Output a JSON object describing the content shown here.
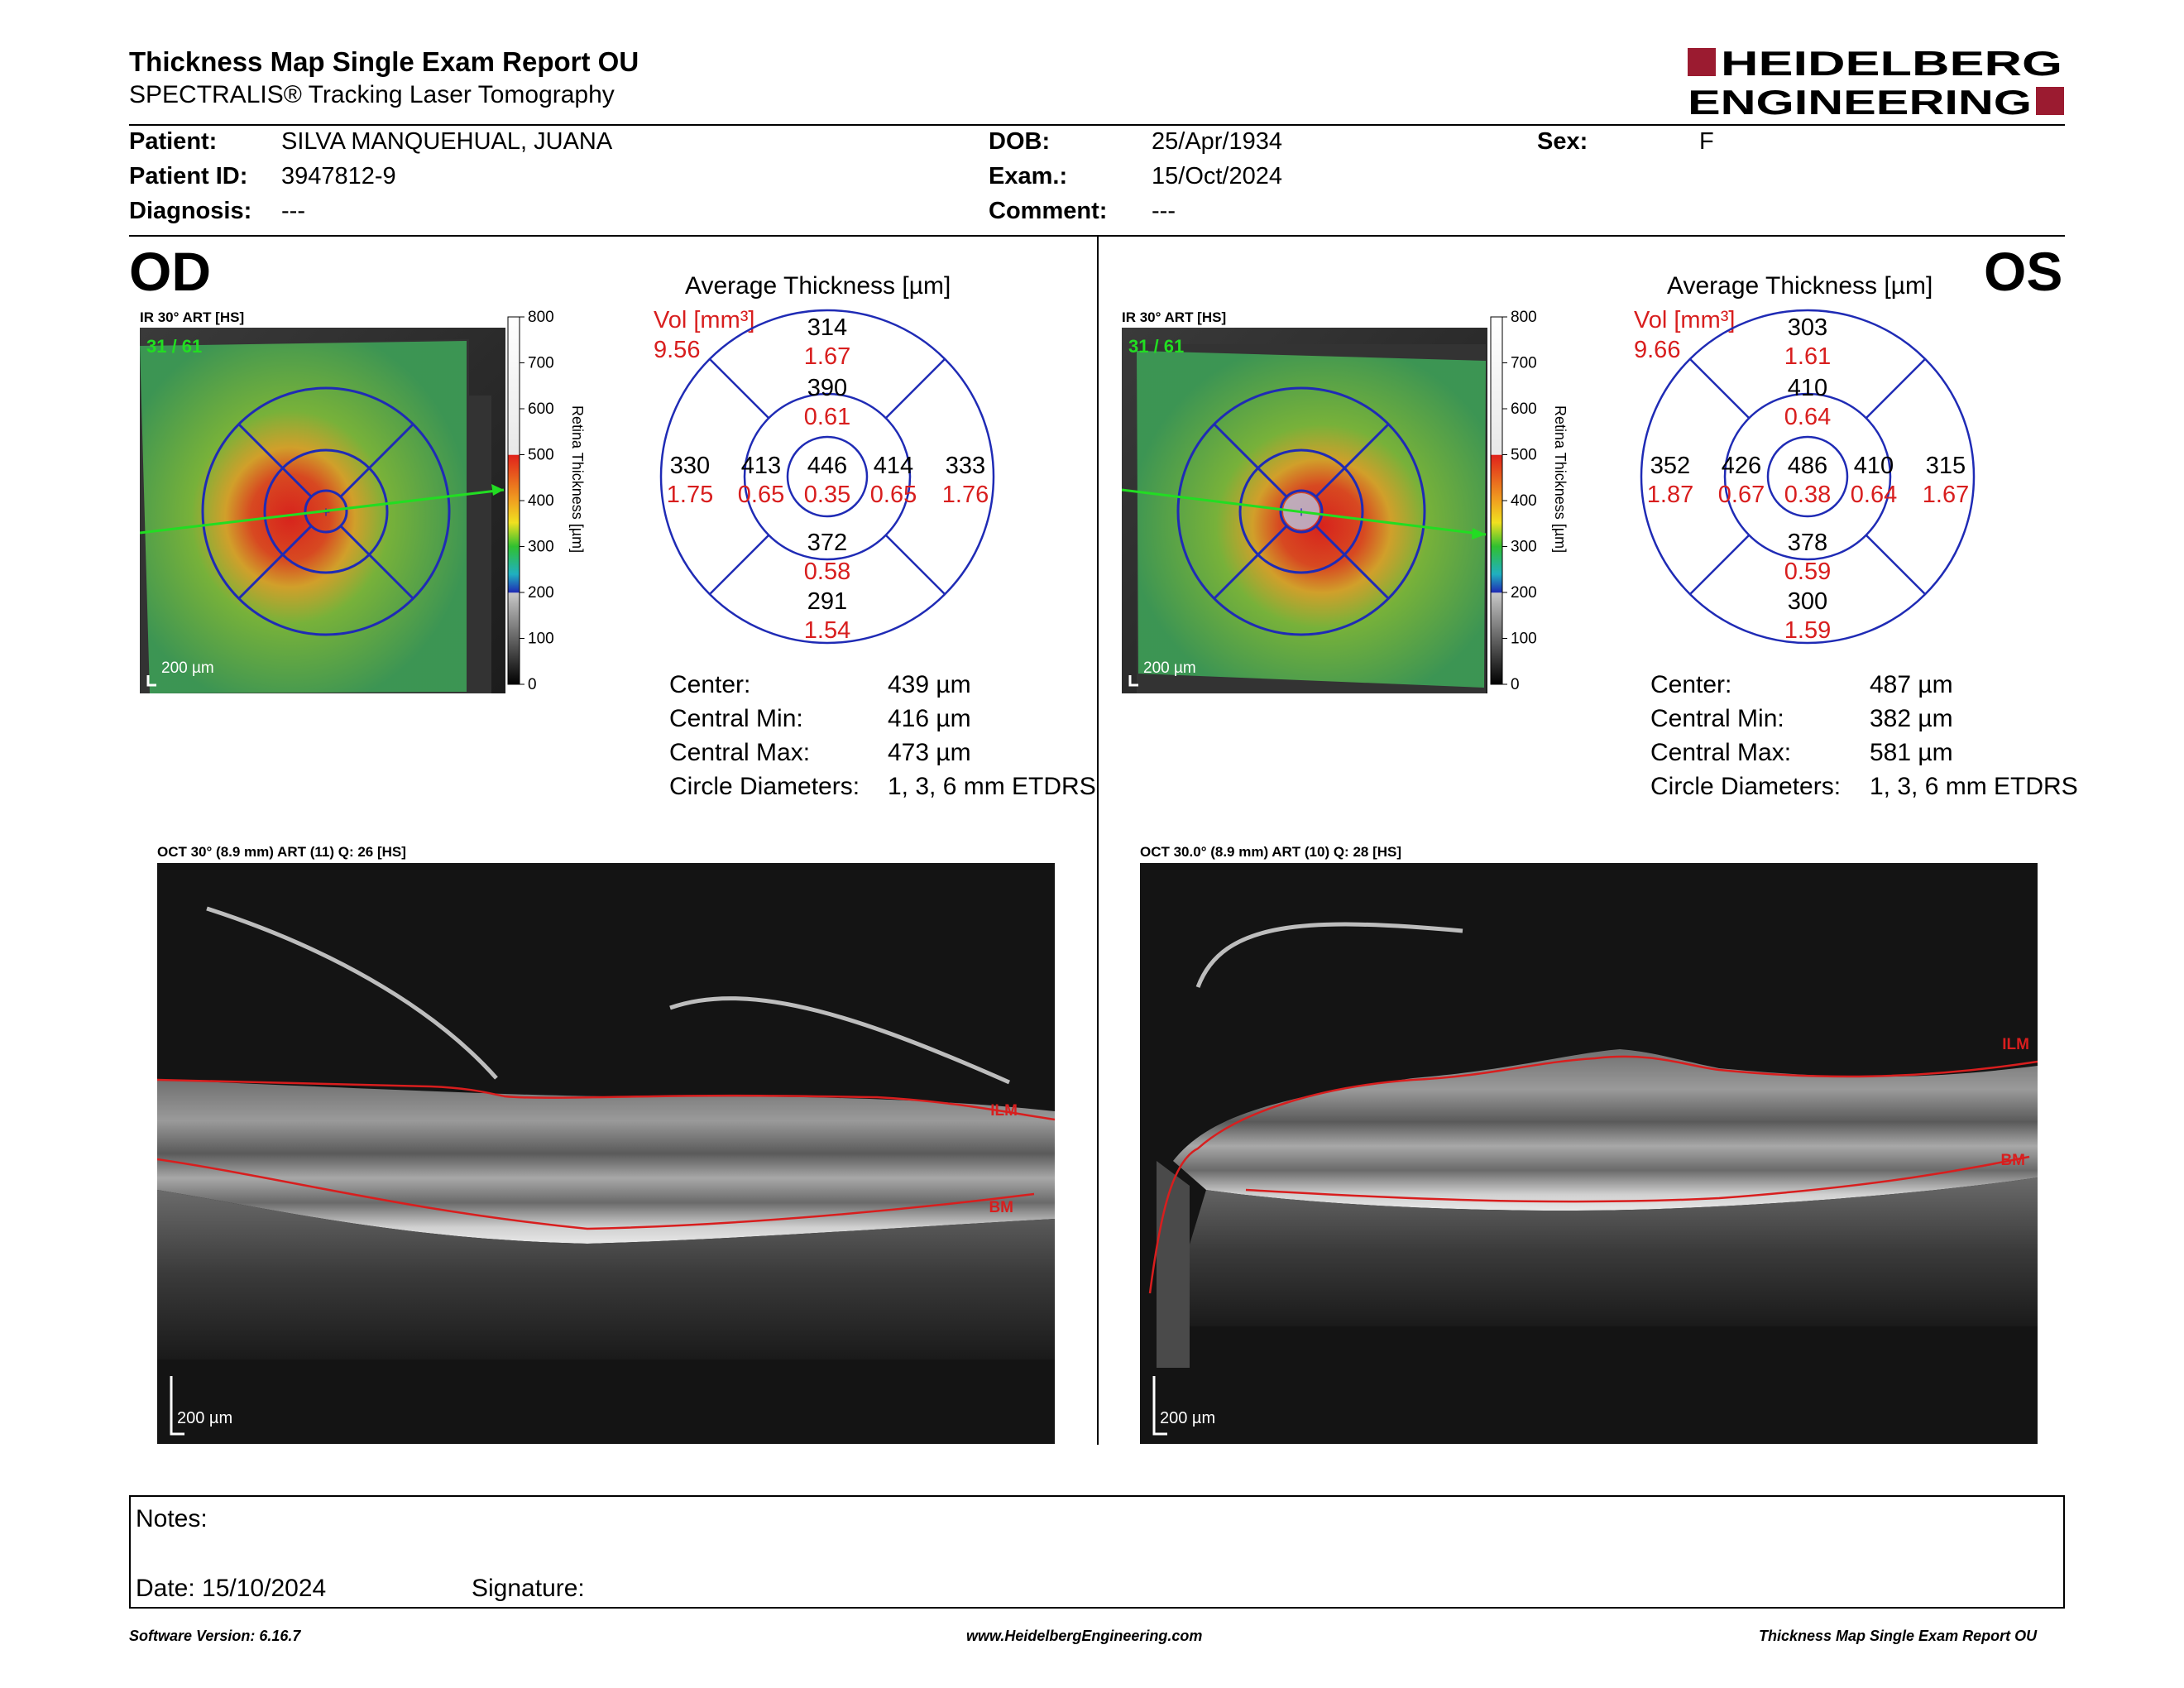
{
  "header": {
    "title": "Thickness Map Single Exam Report OU",
    "subtitle": "SPECTRALIS® Tracking Laser Tomography",
    "logo_line1": "HEIDELBERG",
    "logo_line2": "ENGINEERING"
  },
  "patient": {
    "patient_label": "Patient:",
    "patient_value": "SILVA MANQUEHUAL, JUANA",
    "id_label": "Patient ID:",
    "id_value": "3947812-9",
    "diag_label": "Diagnosis:",
    "diag_value": "---",
    "dob_label": "DOB:",
    "dob_value": "25/Apr/1934",
    "exam_label": "Exam.:",
    "exam_value": "15/Oct/2024",
    "comment_label": "Comment:",
    "comment_value": "---",
    "sex_label": "Sex:",
    "sex_value": "F"
  },
  "scale": {
    "ticks": [
      "800",
      "700",
      "600",
      "500",
      "400",
      "300",
      "200",
      "100",
      "0"
    ],
    "axis_label": "Retina Thickness [µm]"
  },
  "od": {
    "eye": "OD",
    "ir_caption": "IR 30° ART [HS]",
    "frame": "31 / 61",
    "scalebar": "200 µm",
    "avg_title": "Average Thickness [µm]",
    "vol_label": "Vol [mm³]",
    "vol_total": "9.56",
    "grid": {
      "center": {
        "t": "446",
        "v": "0.35"
      },
      "inner_sup": {
        "t": "390",
        "v": "0.61"
      },
      "inner_inf": {
        "t": "372",
        "v": "0.58"
      },
      "inner_left": {
        "t": "413",
        "v": "0.65"
      },
      "inner_right": {
        "t": "414",
        "v": "0.65"
      },
      "outer_sup": {
        "t": "314",
        "v": "1.67"
      },
      "outer_inf": {
        "t": "291",
        "v": "1.54"
      },
      "outer_left": {
        "t": "330",
        "v": "1.75"
      },
      "outer_right": {
        "t": "333",
        "v": "1.76"
      }
    },
    "stats": {
      "center_label": "Center:",
      "center_value": "439 µm",
      "cmin_label": "Central Min:",
      "cmin_value": "416 µm",
      "cmax_label": "Central Max:",
      "cmax_value": "473 µm",
      "circ_label": "Circle Diameters:",
      "circ_value": "1, 3, 6 mm ETDRS"
    },
    "oct_caption": "OCT 30° (8.9 mm) ART (11) Q: 26 [HS]",
    "oct_scalebar": "200 µm",
    "ilm": "ILM",
    "bm": "BM"
  },
  "os": {
    "eye": "OS",
    "ir_caption": "IR 30° ART [HS]",
    "frame": "31 / 61",
    "scalebar": "200 µm",
    "avg_title": "Average Thickness [µm]",
    "vol_label": "Vol [mm³]",
    "vol_total": "9.66",
    "grid": {
      "center": {
        "t": "486",
        "v": "0.38"
      },
      "inner_sup": {
        "t": "410",
        "v": "0.64"
      },
      "inner_inf": {
        "t": "378",
        "v": "0.59"
      },
      "inner_left": {
        "t": "426",
        "v": "0.67"
      },
      "inner_right": {
        "t": "410",
        "v": "0.64"
      },
      "outer_sup": {
        "t": "303",
        "v": "1.61"
      },
      "outer_inf": {
        "t": "300",
        "v": "1.59"
      },
      "outer_left": {
        "t": "352",
        "v": "1.87"
      },
      "outer_right": {
        "t": "315",
        "v": "1.67"
      }
    },
    "stats": {
      "center_label": "Center:",
      "center_value": "487 µm",
      "cmin_label": "Central Min:",
      "cmin_value": "382 µm",
      "cmax_label": "Central Max:",
      "cmax_value": "581 µm",
      "circ_label": "Circle Diameters:",
      "circ_value": "1, 3, 6 mm ETDRS"
    },
    "oct_caption": "OCT 30.0° (8.9 mm) ART (10) Q: 28 [HS]",
    "oct_scalebar": "200 µm",
    "ilm": "ILM",
    "bm": "BM"
  },
  "notes": {
    "notes_label": "Notes:",
    "date_label": "Date: 15/10/2024",
    "signature_label": "Signature:"
  },
  "footer": {
    "software": "Software Version: 6.16.7",
    "website": "www.HeidelbergEngineering.com",
    "report": "Thickness Map Single Exam Report OU"
  },
  "colors": {
    "vol_red": "#d81e1e",
    "grid_blue": "#1f2bb5",
    "logo_red": "#9b1b30",
    "ilm_red": "#d81e1e"
  }
}
